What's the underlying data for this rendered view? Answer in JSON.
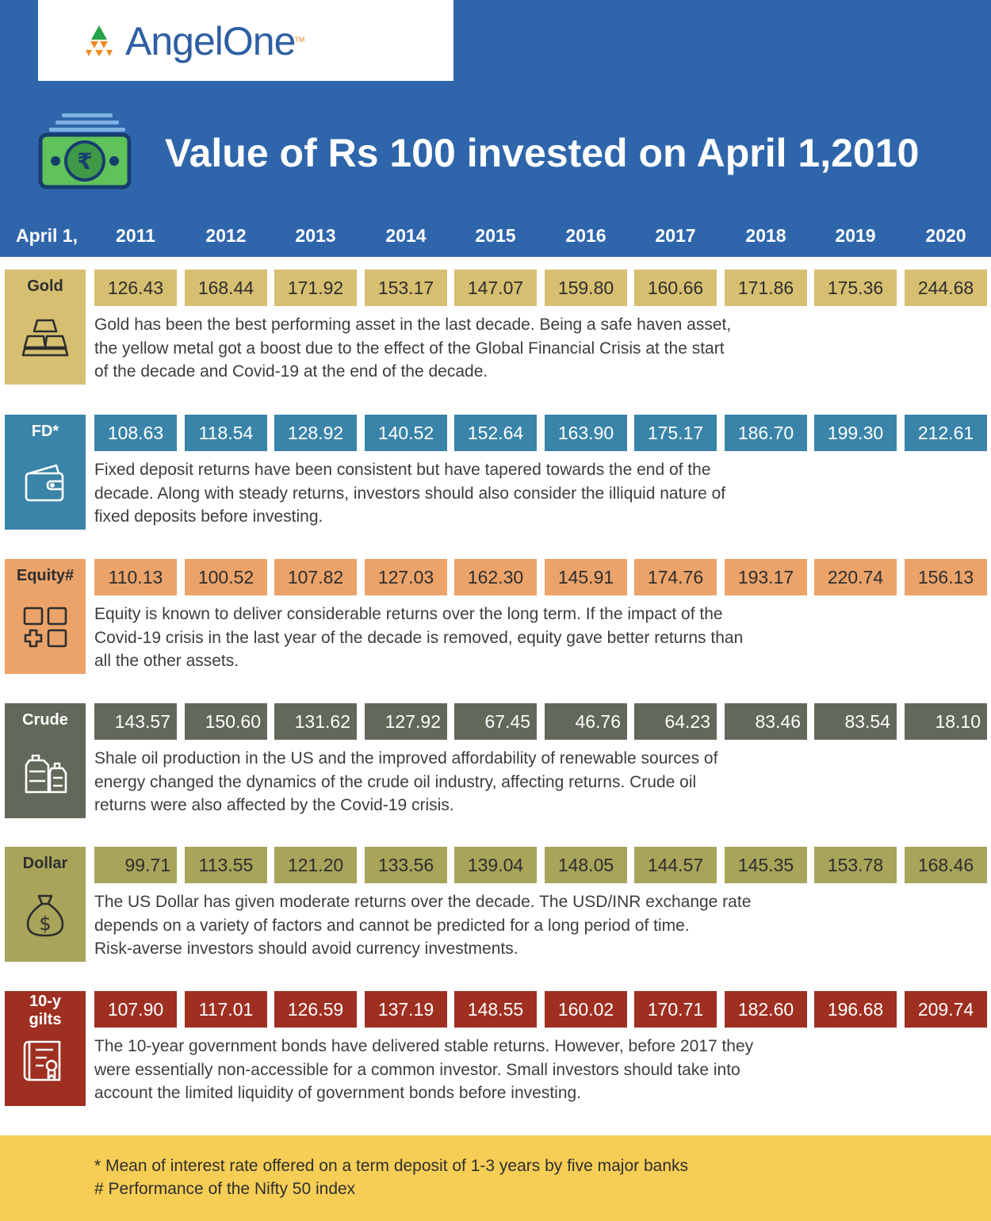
{
  "brand": {
    "name": "AngelOne",
    "part1": "Angel",
    "part2": "One",
    "tm": "TM"
  },
  "colors": {
    "header": "#2f66ab",
    "footer": "#f6cd55",
    "gold": "#d6bf70",
    "fd": "#3a84a9",
    "equity": "#eba36a",
    "crude": "#62685a",
    "dollar": "#a8a45a",
    "gilts": "#9e2f21"
  },
  "icons": [
    "money-icon",
    "gold-bars-icon",
    "wallet-icon",
    "portfolio-grid-icon",
    "oil-cans-icon",
    "money-bag-icon",
    "bond-certificate-icon"
  ],
  "chart_data": {
    "type": "table",
    "title": "Value of Rs 100 invested on April 1,2010",
    "row_header": "April 1,",
    "x": [
      "2011",
      "2012",
      "2013",
      "2014",
      "2015",
      "2016",
      "2017",
      "2018",
      "2019",
      "2020"
    ],
    "series": [
      {
        "name": "Gold",
        "values": [
          "126.43",
          "168.44",
          "171.92",
          "153.17",
          "147.07",
          "159.80",
          "160.66",
          "171.86",
          "175.36",
          "244.68"
        ],
        "note": [
          "Gold has been the best performing asset in the last decade. Being a safe haven asset,",
          "the yellow metal got a boost due to the effect of the Global Financial Crisis at the start",
          "of the decade and Covid-19 at the end of the decade."
        ]
      },
      {
        "name": "FD*",
        "values": [
          "108.63",
          "118.54",
          "128.92",
          "140.52",
          "152.64",
          "163.90",
          "175.17",
          "186.70",
          "199.30",
          "212.61"
        ],
        "note": [
          "Fixed deposit returns have been consistent but have tapered towards the end of the",
          "decade. Along with steady returns, investors should also consider the illiquid nature of",
          "fixed deposits before investing."
        ]
      },
      {
        "name": "Equity#",
        "values": [
          "110.13",
          "100.52",
          "107.82",
          "127.03",
          "162.30",
          "145.91",
          "174.76",
          "193.17",
          "220.74",
          "156.13"
        ],
        "note": [
          "Equity is known to deliver considerable returns over the long term. If the impact of the",
          "Covid-19 crisis in the last year of the decade is removed, equity gave better returns than",
          "all the other assets."
        ]
      },
      {
        "name": "Crude",
        "values": [
          "143.57",
          "150.60",
          "131.62",
          "127.92",
          "67.45",
          "46.76",
          "64.23",
          "83.46",
          "83.54",
          "18.10"
        ],
        "note": [
          "Shale oil production in the US and the improved affordability of renewable sources of",
          "energy changed the dynamics of the crude oil industry, affecting returns. Crude oil",
          "returns were also affected by the Covid-19 crisis."
        ]
      },
      {
        "name": "Dollar",
        "values": [
          "99.71",
          "113.55",
          "121.20",
          "133.56",
          "139.04",
          "148.05",
          "144.57",
          "145.35",
          "153.78",
          "168.46"
        ],
        "note": [
          "The US Dollar has given moderate returns over the decade. The USD/INR exchange rate",
          "depends on a variety of factors and cannot be predicted for a long period of time.",
          "Risk-averse investors should avoid currency investments."
        ]
      },
      {
        "name": "10-y gilts",
        "label_lines": [
          "10-y",
          "gilts"
        ],
        "values": [
          "107.90",
          "117.01",
          "126.59",
          "137.19",
          "148.55",
          "160.02",
          "170.71",
          "182.60",
          "196.68",
          "209.74"
        ],
        "note": [
          "The 10-year government bonds have delivered stable returns. However, before 2017 they",
          "were essentially non-accessible for a common investor. Small investors should take into",
          "account the limited liquidity of government bonds before investing."
        ]
      }
    ],
    "footnotes": [
      "* Mean of interest rate offered on a term deposit of 1-3 years by five major banks",
      "# Performance of the Nifty 50 index"
    ]
  }
}
